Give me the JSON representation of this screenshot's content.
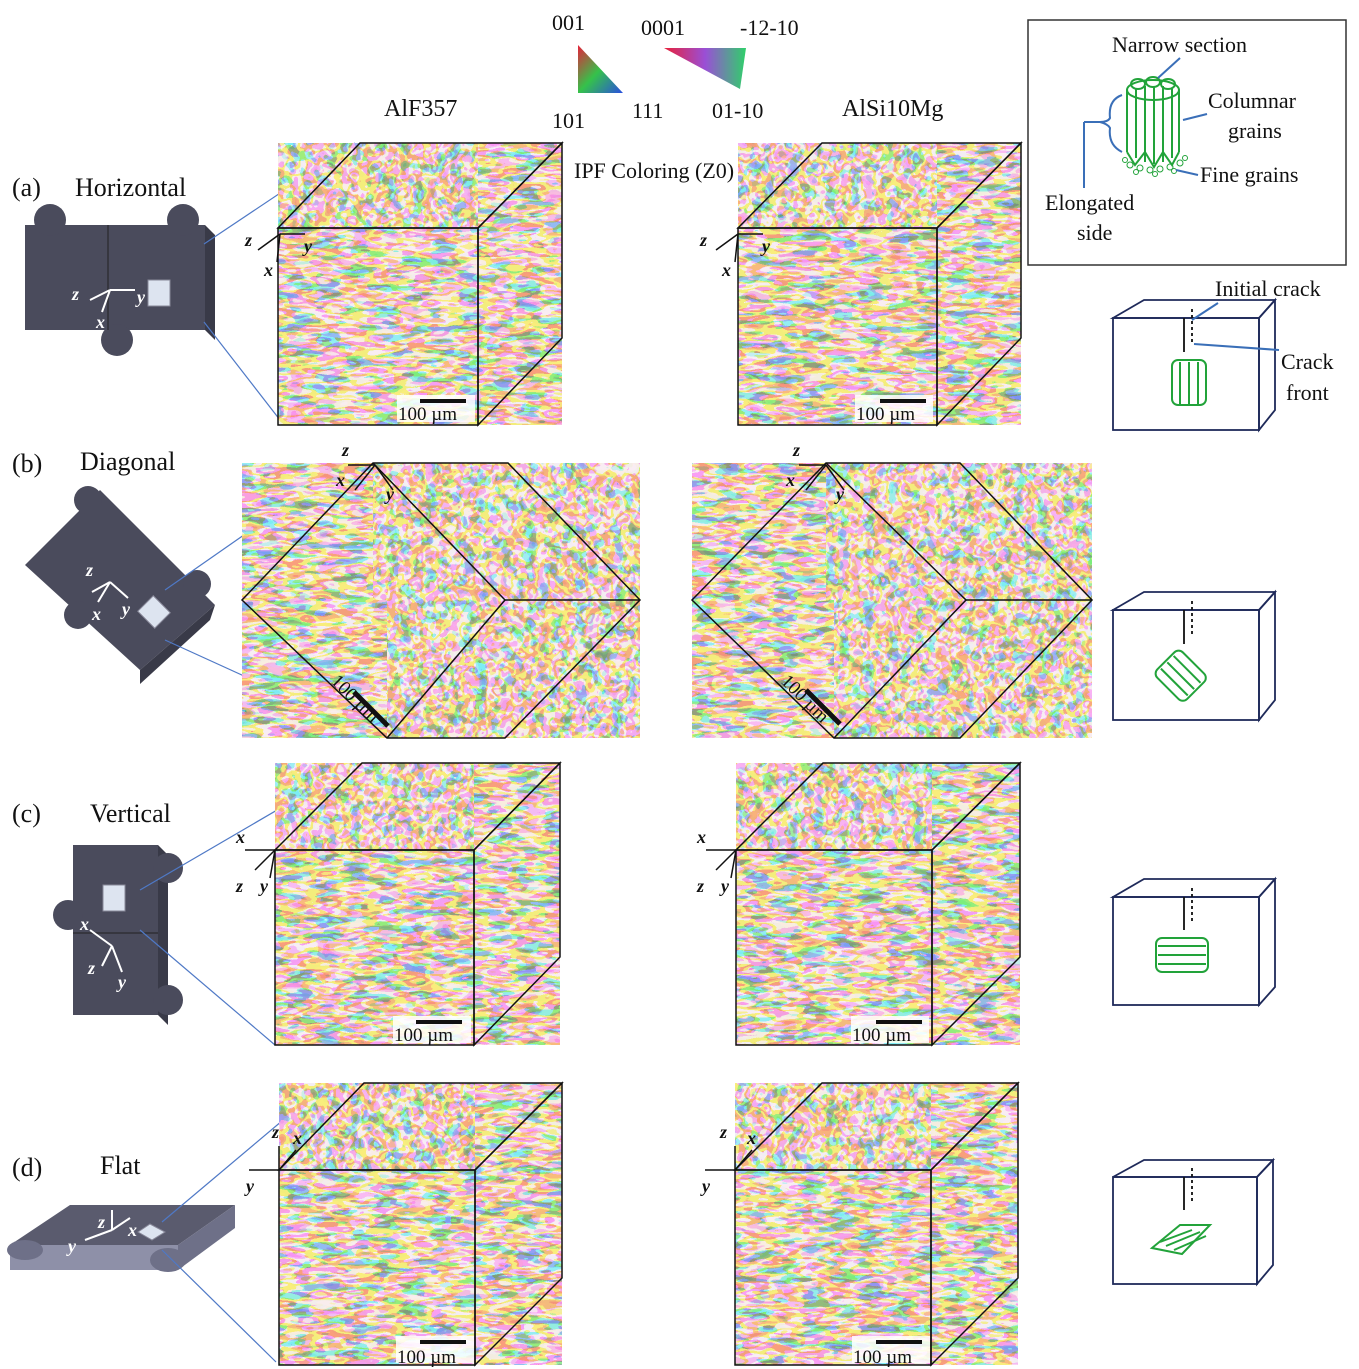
{
  "legend": {
    "cubic": {
      "top": "001",
      "bottom_left": "101",
      "bottom_right": "111"
    },
    "hex": {
      "top_left": "0001",
      "top_right": "-12-10",
      "bottom": "01-10"
    },
    "caption": "IPF Coloring (Z0)"
  },
  "columns": {
    "left": "AlF357",
    "right": "AlSi10Mg"
  },
  "rows": [
    {
      "id": "a",
      "label": "(a)",
      "name": "Horizontal"
    },
    {
      "id": "b",
      "label": "(b)",
      "name": "Diagonal"
    },
    {
      "id": "c",
      "label": "(c)",
      "name": "Vertical"
    },
    {
      "id": "d",
      "label": "(d)",
      "name": "Flat"
    }
  ],
  "scale_bar": "100 µm",
  "axes": {
    "x": "x",
    "y": "y",
    "z": "z"
  },
  "inset": {
    "narrow": "Narrow section",
    "columnar_1": "Columnar",
    "columnar_2": "grains",
    "fine": "Fine grains",
    "elongated_1": "Elongated",
    "elongated_2": "side"
  },
  "crack": {
    "initial": "Initial crack",
    "front_1": "Crack",
    "front_2": "front"
  },
  "colors": {
    "specimen": "#4a4b5c",
    "crack_box": "#1f2a5a",
    "grain": "#22a33a",
    "leader": "#3a6fb8"
  }
}
